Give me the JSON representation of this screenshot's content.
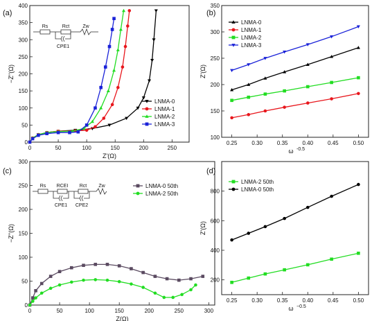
{
  "chart_data": [
    {
      "panel_label": "(a)",
      "type": "line",
      "xlabel": "Z'(Ω)",
      "ylabel": "−Z''(Ω)",
      "xlim": [
        0,
        280
      ],
      "ylim": [
        0,
        400
      ],
      "xticks": [
        0,
        50,
        100,
        150,
        200,
        250
      ],
      "yticks": [
        0,
        50,
        100,
        150,
        200,
        250,
        300,
        350,
        400
      ],
      "legend_position": "center-right",
      "circuit": [
        "Rs",
        "Rct",
        "Zw",
        "CPE1"
      ],
      "series": [
        {
          "name": "LNMA-0",
          "color": "#000000",
          "marker": "triangle-down",
          "x": [
            0,
            5,
            15,
            30,
            50,
            80,
            110,
            140,
            170,
            190,
            200,
            210,
            215,
            218,
            222
          ],
          "y": [
            0,
            12,
            22,
            28,
            32,
            35,
            40,
            50,
            70,
            100,
            130,
            180,
            240,
            300,
            385
          ]
        },
        {
          "name": "LNMA-1",
          "color": "#e8161c",
          "marker": "circle",
          "x": [
            0,
            5,
            15,
            30,
            50,
            80,
            100,
            115,
            130,
            145,
            155,
            163,
            168,
            172,
            175
          ],
          "y": [
            0,
            12,
            22,
            28,
            32,
            33,
            35,
            45,
            70,
            110,
            160,
            220,
            280,
            340,
            385
          ]
        },
        {
          "name": "LNMA-2",
          "color": "#22dd22",
          "marker": "triangle-up",
          "x": [
            0,
            5,
            15,
            30,
            50,
            75,
            95,
            110,
            125,
            138,
            148,
            155,
            160,
            165
          ],
          "y": [
            0,
            12,
            22,
            28,
            31,
            32,
            40,
            60,
            100,
            150,
            210,
            270,
            330,
            385
          ]
        },
        {
          "name": "LNMA-3",
          "color": "#1a22d8",
          "marker": "square",
          "x": [
            0,
            5,
            15,
            30,
            50,
            70,
            85,
            100,
            115,
            125,
            133,
            140,
            145,
            148
          ],
          "y": [
            0,
            10,
            20,
            25,
            28,
            28,
            30,
            50,
            100,
            160,
            220,
            280,
            330,
            362
          ]
        }
      ]
    },
    {
      "panel_label": "(b)",
      "type": "line",
      "xlabel": "ω",
      "xlabel_sup": "-0.5",
      "ylabel": "Z'(Ω)",
      "xlim": [
        0.23,
        0.52
      ],
      "ylim": [
        100,
        350
      ],
      "xticks": [
        "0.25",
        "0.30",
        "0.35",
        "0.40",
        "0.45",
        "0.50"
      ],
      "yticks": [
        100,
        150,
        200,
        250,
        300,
        350
      ],
      "legend_position": "top-left",
      "series": [
        {
          "name": "LNMA-0",
          "color": "#000000",
          "marker": "triangle-up",
          "x": [
            0.25,
            0.283,
            0.316,
            0.354,
            0.4,
            0.447,
            0.5
          ],
          "y": [
            190,
            200,
            212,
            224,
            238,
            253,
            270
          ]
        },
        {
          "name": "LNMA-1",
          "color": "#e8161c",
          "marker": "circle",
          "x": [
            0.25,
            0.283,
            0.316,
            0.354,
            0.4,
            0.447,
            0.5
          ],
          "y": [
            137,
            143,
            150,
            157,
            165,
            173,
            183
          ]
        },
        {
          "name": "LNMA-2",
          "color": "#22dd22",
          "marker": "square",
          "x": [
            0.25,
            0.283,
            0.316,
            0.354,
            0.4,
            0.447,
            0.5
          ],
          "y": [
            170,
            176,
            182,
            188,
            196,
            204,
            213
          ]
        },
        {
          "name": "LNMA-3",
          "color": "#1a22d8",
          "marker": "triangle-down",
          "x": [
            0.25,
            0.283,
            0.316,
            0.354,
            0.4,
            0.447,
            0.5
          ],
          "y": [
            227,
            238,
            250,
            262,
            276,
            291,
            310
          ]
        }
      ]
    },
    {
      "panel_label": "(c)",
      "type": "line",
      "xlabel": "Z(Ω)",
      "ylabel": "−Z''(Ω)",
      "xlim": [
        0,
        310
      ],
      "ylim": [
        0,
        300
      ],
      "xticks": [
        0,
        50,
        100,
        150,
        200,
        250,
        300
      ],
      "yticks": [
        0,
        50,
        100,
        150,
        200,
        250,
        300
      ],
      "legend_position": "top-right",
      "circuit": [
        "Rs",
        "RCEI",
        "Rct",
        "Zw",
        "CPE1",
        "CPE2"
      ],
      "series": [
        {
          "name": "LNMA-0  50th",
          "color": "#5a4a60",
          "marker": "square",
          "x": [
            0,
            5,
            10,
            20,
            35,
            50,
            70,
            90,
            110,
            130,
            150,
            170,
            190,
            210,
            230,
            250,
            270,
            290
          ],
          "y": [
            0,
            15,
            30,
            45,
            60,
            70,
            78,
            83,
            85,
            85,
            82,
            76,
            68,
            60,
            55,
            52,
            55,
            60
          ]
        },
        {
          "name": "LNMA-2  50th",
          "color": "#22dd22",
          "marker": "circle",
          "x": [
            0,
            5,
            10,
            20,
            35,
            50,
            70,
            90,
            110,
            130,
            150,
            170,
            190,
            210,
            225,
            240,
            255,
            270,
            278
          ],
          "y": [
            0,
            8,
            15,
            25,
            35,
            42,
            48,
            52,
            53,
            52,
            49,
            44,
            37,
            25,
            16,
            16,
            22,
            32,
            42
          ]
        }
      ]
    },
    {
      "panel_label": "(d)",
      "type": "line",
      "xlabel": "ω",
      "xlabel_sup": "−0.5",
      "ylabel": "Z'(Ω)",
      "xlim": [
        0.23,
        0.52
      ],
      "ylim": [
        100,
        1000
      ],
      "xticks": [
        "0.25",
        "0.30",
        "0.35",
        "0.40",
        "0.45",
        "0.50"
      ],
      "yticks": [
        200,
        400,
        600,
        800
      ],
      "legend_position": "top-left",
      "series": [
        {
          "name": "LNMA-2  50th",
          "color": "#22dd22",
          "marker": "square",
          "x": [
            0.25,
            0.283,
            0.316,
            0.354,
            0.4,
            0.447,
            0.5
          ],
          "y": [
            183,
            212,
            240,
            268,
            302,
            340,
            380
          ]
        },
        {
          "name": "LNMA-0  50th",
          "color": "#000000",
          "marker": "circle",
          "x": [
            0.25,
            0.283,
            0.316,
            0.354,
            0.4,
            0.447,
            0.5
          ],
          "y": [
            470,
            515,
            560,
            615,
            690,
            765,
            845
          ]
        }
      ]
    }
  ]
}
